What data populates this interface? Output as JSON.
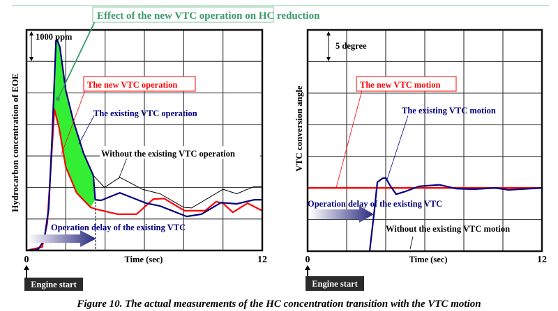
{
  "figure": {
    "caption": "Figure 10. The actual measurements of the HC concentration transition with the VTC motion",
    "highlight_label": "Effect of the new VTC operation on HC reduction",
    "colors": {
      "new": "#ff0000",
      "existing": "#000080",
      "without": "#000000",
      "fill": "#33ee33",
      "highlight": "#3a9a6a"
    }
  },
  "chart_data": [
    {
      "type": "line",
      "title": "",
      "xlabel": "Time (sec)",
      "ylabel": "Hydrocarbon concentration of EOE",
      "xlim": [
        0,
        12
      ],
      "ylim": [
        0,
        7000
      ],
      "x_ticks": [
        "0",
        "12"
      ],
      "grid": true,
      "x_grid_step": 2,
      "y_grid_step": 1000,
      "scale_label": "1000 ppm",
      "start_label": "Engine start",
      "delay_label": "Operation delay of the existing VTC",
      "delay_time": 3.5,
      "series": [
        {
          "name": "The new VTC operation",
          "key": "new",
          "x": [
            0,
            0.8,
            1.06,
            1.24,
            1.42,
            1.67,
            2.0,
            2.55,
            3.26,
            3.6,
            4.65,
            5.6,
            6.45,
            7.0,
            8.05,
            9.1,
            9.65,
            10.0,
            10.5,
            11.25,
            12
          ],
          "y": [
            0,
            110,
            880,
            2650,
            4480,
            3860,
            2650,
            1830,
            1370,
            1300,
            1150,
            1150,
            1630,
            1650,
            1260,
            1260,
            1550,
            1500,
            1210,
            1500,
            1260
          ]
        },
        {
          "name": "The existing VTC operation",
          "key": "existing",
          "x": [
            0,
            0.6,
            0.9,
            1.13,
            1.3,
            1.5,
            1.56,
            1.7,
            2.0,
            2.4,
            2.9,
            3.4,
            3.5,
            3.8,
            4.75,
            6.1,
            6.8,
            8.15,
            8.9,
            9.9,
            10.7,
            11.6,
            12
          ],
          "y": [
            0,
            40,
            330,
            1320,
            3530,
            6670,
            6690,
            6450,
            5080,
            4080,
            3090,
            2380,
            1610,
            1590,
            1830,
            1500,
            1410,
            1080,
            1150,
            1520,
            1480,
            1610,
            1610
          ]
        },
        {
          "name": "Without the existing VTC operation",
          "key": "without",
          "x": [
            3.4,
            3.97,
            4.75,
            5.9,
            6.8,
            8.0,
            8.4,
            10.0,
            10.7,
            11.6,
            12
          ],
          "y": [
            2380,
            2000,
            2320,
            1940,
            1800,
            1370,
            1350,
            1940,
            1800,
            2030,
            2030
          ]
        }
      ]
    },
    {
      "type": "line",
      "title": "",
      "xlabel": "Time (sec)",
      "ylabel": "VTC conversion angle",
      "xlim": [
        0,
        12
      ],
      "ylim": [
        0,
        35
      ],
      "x_ticks": [
        "0",
        "12"
      ],
      "grid": true,
      "x_grid_step": 2,
      "y_grid_step": 5,
      "scale_label": "5 degree",
      "start_label": "Engine start",
      "delay_label": "Operation delay of the existing VTC",
      "series": [
        {
          "name": "The new VTC motion",
          "key": "new",
          "x": [
            0,
            12
          ],
          "y": [
            10,
            10
          ]
        },
        {
          "name": "The existing VTC motion",
          "key": "existing",
          "x": [
            3.1,
            3.18,
            3.43,
            3.57,
            3.82,
            4.0,
            4.25,
            4.54,
            4.96,
            5.7,
            6.75,
            7.6,
            8.5,
            9.6,
            10.3,
            11.4,
            12
          ],
          "y": [
            -1,
            0,
            6.7,
            10.9,
            11.5,
            11.6,
            10.25,
            9.0,
            9.4,
            10.25,
            10.5,
            9.9,
            9.8,
            10.0,
            9.7,
            9.9,
            10
          ]
        },
        {
          "name": "Without the existing VTC motion",
          "key": "without",
          "x": [],
          "y": []
        }
      ]
    }
  ]
}
